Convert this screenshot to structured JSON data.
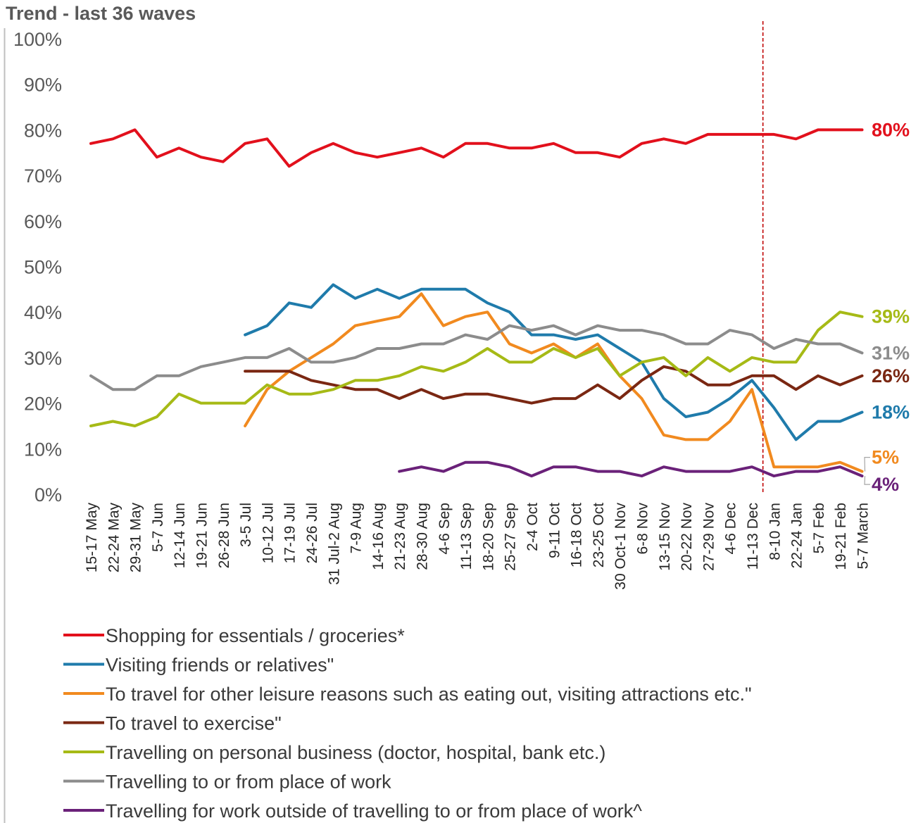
{
  "chart_data": {
    "type": "line",
    "title": "Trend - last 36 waves",
    "ylim": [
      0,
      100
    ],
    "yticks": [
      "0%",
      "10%",
      "20%",
      "30%",
      "40%",
      "50%",
      "60%",
      "70%",
      "80%",
      "90%",
      "100%"
    ],
    "x": [
      "15-17 May",
      "22-24 May",
      "29-31 May",
      "5-7 Jun",
      "12-14 Jun",
      "19-21 Jun",
      "26-28 Jun",
      "3-5 Jul",
      "10-12 Jul",
      "17-19 Jul",
      "24-26 Jul",
      "31 Jul-2 Aug",
      "7-9 Aug",
      "14-16 Aug",
      "21-23 Aug",
      "28-30 Aug",
      "4-6 Sep",
      "11-13 Sep",
      "18-20 Sep",
      "25-27 Sep",
      "2-4 Oct",
      "9-11 Oct",
      "16-18 Oct",
      "23-25 Oct",
      "30 Oct-1 Nov",
      "6-8 Nov",
      "13-15 Nov",
      "20-22 Nov",
      "27-29 Nov",
      "4-6 Dec",
      "11-13 Dec",
      "8-10 Jan",
      "22-24 Jan",
      "5-7 Feb",
      "19-21 Feb",
      "5-7 March"
    ],
    "grid": false,
    "legend_position": "bottom",
    "marker_line": {
      "between": [
        "11-13 Dec",
        "8-10 Jan"
      ],
      "color": "#c00000",
      "style": "dashed"
    },
    "series": [
      {
        "name": "Shopping for essentials / groceries*",
        "color": "#e2101c",
        "end_label": "80%",
        "values": [
          77,
          78,
          80,
          74,
          76,
          74,
          73,
          77,
          78,
          72,
          75,
          77,
          75,
          74,
          75,
          76,
          74,
          77,
          77,
          76,
          76,
          77,
          75,
          75,
          74,
          77,
          78,
          77,
          79,
          79,
          79,
          79,
          78,
          80,
          80,
          80
        ]
      },
      {
        "name": "Visiting friends or relatives\"",
        "color": "#1f7bab",
        "end_label": "18%",
        "values": [
          null,
          null,
          null,
          null,
          null,
          null,
          null,
          35,
          37,
          42,
          41,
          46,
          43,
          45,
          43,
          45,
          45,
          45,
          42,
          40,
          35,
          35,
          34,
          35,
          32,
          29,
          21,
          17,
          18,
          21,
          25,
          19,
          12,
          16,
          16,
          18
        ]
      },
      {
        "name": "To travel for other leisure reasons such as eating out, visiting attractions etc.\"",
        "color": "#f18a1f",
        "end_label": "5%",
        "values": [
          null,
          null,
          null,
          null,
          null,
          null,
          null,
          15,
          23,
          27,
          30,
          33,
          37,
          38,
          39,
          44,
          37,
          39,
          40,
          33,
          31,
          33,
          30,
          33,
          26,
          21,
          13,
          12,
          12,
          16,
          23,
          6,
          6,
          6,
          7,
          5
        ]
      },
      {
        "name": "To travel to exercise\"",
        "color": "#7a2712",
        "end_label": "26%",
        "values": [
          null,
          null,
          null,
          null,
          null,
          null,
          null,
          27,
          27,
          27,
          25,
          24,
          23,
          23,
          21,
          23,
          21,
          22,
          22,
          21,
          20,
          21,
          21,
          24,
          21,
          25,
          28,
          27,
          24,
          24,
          26,
          26,
          23,
          26,
          24,
          26
        ]
      },
      {
        "name": "Travelling on personal business (doctor, hospital, bank etc.)",
        "color": "#a6ba16",
        "end_label": "39%",
        "values": [
          15,
          16,
          15,
          17,
          22,
          20,
          20,
          20,
          24,
          22,
          22,
          23,
          25,
          25,
          26,
          28,
          27,
          29,
          32,
          29,
          29,
          32,
          30,
          32,
          26,
          29,
          30,
          26,
          30,
          27,
          30,
          29,
          29,
          36,
          40,
          39
        ]
      },
      {
        "name": "Travelling to or from place of work",
        "color": "#8c8c8c",
        "end_label": "31%",
        "values": [
          26,
          23,
          23,
          26,
          26,
          28,
          29,
          30,
          30,
          32,
          29,
          29,
          30,
          32,
          32,
          33,
          33,
          35,
          34,
          37,
          36,
          37,
          35,
          37,
          36,
          36,
          35,
          33,
          33,
          36,
          35,
          32,
          34,
          33,
          33,
          31
        ]
      },
      {
        "name": "Travelling for work outside of travelling to or from place of work^",
        "color": "#6a2179",
        "end_label": "4%",
        "values": [
          null,
          null,
          null,
          null,
          null,
          null,
          null,
          null,
          null,
          null,
          null,
          null,
          null,
          null,
          5,
          6,
          5,
          7,
          7,
          6,
          4,
          6,
          6,
          5,
          5,
          4,
          6,
          5,
          5,
          5,
          6,
          4,
          5,
          5,
          6,
          4
        ]
      }
    ]
  }
}
